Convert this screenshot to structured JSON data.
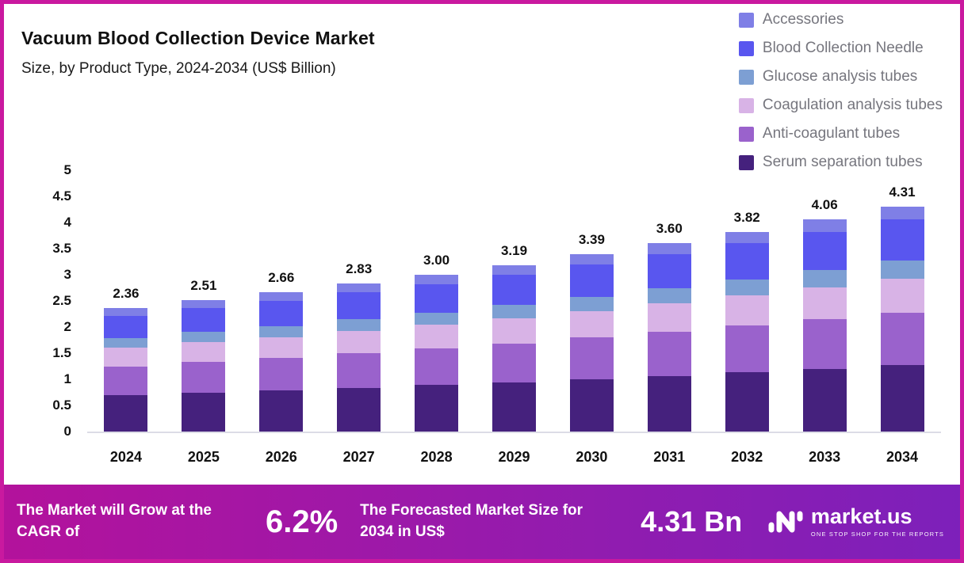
{
  "header": {
    "title": "Vacuum Blood Collection Device Market",
    "subtitle": "Size, by Product Type, 2024-2034 (US$ Billion)"
  },
  "legend": {
    "items": [
      {
        "label": "Accessories",
        "color": "#7f7fe6"
      },
      {
        "label": "Blood Collection Needle",
        "color": "#5956ef"
      },
      {
        "label": "Glucose analysis tubes",
        "color": "#7d9fd3"
      },
      {
        "label": "Coagulation analysis tubes",
        "color": "#d8b3e6"
      },
      {
        "label": "Anti-coagulant tubes",
        "color": "#9a62cc"
      },
      {
        "label": "Serum separation tubes",
        "color": "#45217d"
      }
    ]
  },
  "chart_data": {
    "type": "bar",
    "stacked": true,
    "title": "Vacuum Blood Collection Device Market",
    "subtitle": "Size, by Product Type, 2024-2034 (US$ Billion)",
    "xlabel": "",
    "ylabel": "US$ Billion",
    "ylim": [
      0,
      5
    ],
    "yticks": [
      "5",
      "4.5",
      "4",
      "3.5",
      "3",
      "2.5",
      "2",
      "1.5",
      "1",
      "0.5",
      "0"
    ],
    "grid": false,
    "legend_position": "top-right",
    "categories": [
      "2024",
      "2025",
      "2026",
      "2027",
      "2028",
      "2029",
      "2030",
      "2031",
      "2032",
      "2033",
      "2034"
    ],
    "totals": [
      2.36,
      2.51,
      2.66,
      2.83,
      3.0,
      3.19,
      3.39,
      3.6,
      3.82,
      4.06,
      4.31
    ],
    "total_labels": [
      "2.36",
      "2.51",
      "2.66",
      "2.83",
      "3.00",
      "3.19",
      "3.39",
      "3.60",
      "3.82",
      "4.06",
      "4.31"
    ],
    "series": [
      {
        "name": "Serum separation tubes",
        "color": "#45217d",
        "values": [
          0.7,
          0.74,
          0.79,
          0.84,
          0.89,
          0.94,
          1.0,
          1.06,
          1.13,
          1.2,
          1.27
        ]
      },
      {
        "name": "Anti-coagulant tubes",
        "color": "#9a62cc",
        "values": [
          0.55,
          0.59,
          0.62,
          0.66,
          0.7,
          0.75,
          0.8,
          0.85,
          0.9,
          0.95,
          1.01
        ]
      },
      {
        "name": "Coagulation analysis tubes",
        "color": "#d8b3e6",
        "values": [
          0.35,
          0.38,
          0.4,
          0.42,
          0.45,
          0.48,
          0.51,
          0.54,
          0.57,
          0.61,
          0.65
        ]
      },
      {
        "name": "Glucose analysis tubes",
        "color": "#7d9fd3",
        "values": [
          0.19,
          0.2,
          0.21,
          0.23,
          0.24,
          0.26,
          0.27,
          0.29,
          0.31,
          0.33,
          0.35
        ]
      },
      {
        "name": "Blood Collection Needle",
        "color": "#5956ef",
        "values": [
          0.43,
          0.45,
          0.48,
          0.51,
          0.54,
          0.57,
          0.61,
          0.65,
          0.69,
          0.73,
          0.78
        ]
      },
      {
        "name": "Accessories",
        "color": "#7f7fe6",
        "values": [
          0.14,
          0.15,
          0.16,
          0.17,
          0.18,
          0.19,
          0.2,
          0.21,
          0.22,
          0.24,
          0.25
        ]
      }
    ]
  },
  "banner": {
    "cagr_label": "The Market will Grow at the CAGR of",
    "cagr_value": "6.2%",
    "forecast_label": "The Forecasted Market Size for 2034 in US$",
    "forecast_value": "4.31 Bn",
    "brand": "market.us",
    "brand_tagline": "ONE STOP SHOP FOR THE REPORTS"
  }
}
